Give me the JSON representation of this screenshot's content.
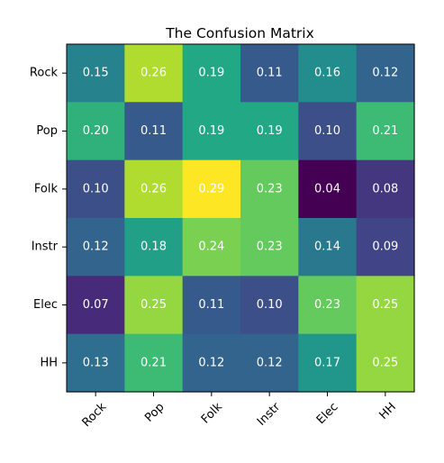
{
  "chart_data": {
    "type": "heatmap",
    "title": "The Confusion Matrix",
    "xlabel": "",
    "ylabel": "",
    "x_categories": [
      "Rock",
      "Pop",
      "Folk",
      "Instr",
      "Elec",
      "HH"
    ],
    "y_categories": [
      "Rock",
      "Pop",
      "Folk",
      "Instr",
      "Elec",
      "HH"
    ],
    "values": [
      [
        0.15,
        0.26,
        0.19,
        0.11,
        0.16,
        0.12
      ],
      [
        0.2,
        0.11,
        0.19,
        0.19,
        0.1,
        0.21
      ],
      [
        0.1,
        0.26,
        0.29,
        0.23,
        0.04,
        0.08
      ],
      [
        0.12,
        0.18,
        0.24,
        0.23,
        0.14,
        0.09
      ],
      [
        0.07,
        0.25,
        0.11,
        0.1,
        0.23,
        0.25
      ],
      [
        0.13,
        0.21,
        0.12,
        0.12,
        0.17,
        0.25
      ]
    ],
    "colormap": "viridis",
    "cell_label_color": "#ffffff",
    "x_tick_rotation_deg": 45,
    "grid": false,
    "legend": "none"
  }
}
